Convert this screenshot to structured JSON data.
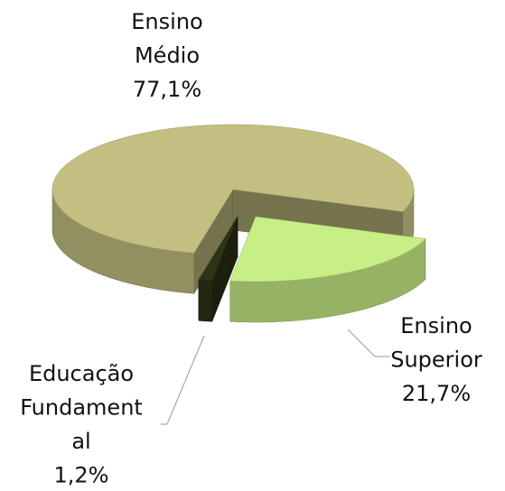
{
  "chart_data": {
    "type": "pie3d",
    "categories": [
      [
        "Ensino",
        "Superior"
      ],
      [
        "Educação",
        "Fundament",
        "al"
      ],
      [
        "Ensino",
        "Médio"
      ]
    ],
    "values": [
      21.7,
      1.2,
      77.1
    ],
    "value_labels": [
      "21,7%",
      "1,2%",
      "77,1%"
    ],
    "colors": [
      "#c8ee86",
      "#2f3416",
      "#c2bf80"
    ]
  }
}
